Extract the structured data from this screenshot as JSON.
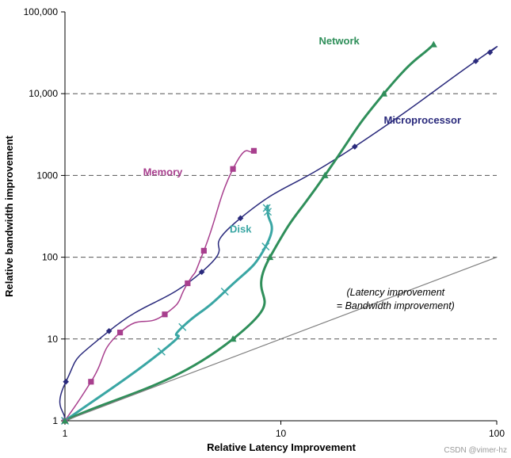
{
  "chart_data": {
    "type": "line",
    "x_scale": "log",
    "y_scale": "log",
    "xlim": [
      1,
      100
    ],
    "ylim": [
      1,
      100000
    ],
    "xlabel": "Relative Latency Improvement",
    "ylabel": "Relative bandwidth improvement",
    "x_ticks": [
      {
        "value": 1,
        "label": "1"
      },
      {
        "value": 10,
        "label": "10"
      },
      {
        "value": 100,
        "label": "100"
      }
    ],
    "y_ticks": [
      {
        "value": 1,
        "label": "1"
      },
      {
        "value": 10,
        "label": "10"
      },
      {
        "value": 100,
        "label": "100"
      },
      {
        "value": 1000,
        "label": "1000"
      },
      {
        "value": 10000,
        "label": "10,000"
      },
      {
        "value": 100000,
        "label": "100,000"
      }
    ],
    "grid": "horizontal dashed at 10, 100, 1000, 10000",
    "series": [
      {
        "name": "Microprocessor",
        "color": "#2a2a7c",
        "marker": "diamond",
        "stroke_width": 1.5,
        "points": [
          [
            1,
            1
          ],
          [
            1.01,
            3
          ],
          [
            1.6,
            12.5
          ],
          [
            4.3,
            66
          ],
          [
            6.5,
            300
          ],
          [
            22,
            2250
          ],
          [
            80,
            25000
          ],
          [
            93,
            32000
          ]
        ]
      },
      {
        "name": "Memory",
        "color": "#a83f8e",
        "marker": "square",
        "stroke_width": 1.5,
        "points": [
          [
            1,
            1
          ],
          [
            1.32,
            3
          ],
          [
            1.8,
            12
          ],
          [
            2.9,
            20
          ],
          [
            3.7,
            48
          ],
          [
            4.4,
            120
          ],
          [
            6.0,
            1200
          ],
          [
            7.5,
            2000
          ]
        ]
      },
      {
        "name": "Disk",
        "color": "#3aa6a4",
        "marker": "x",
        "stroke_width": 3,
        "points": [
          [
            1,
            1
          ],
          [
            2.8,
            7
          ],
          [
            3.5,
            14
          ],
          [
            5.5,
            38
          ],
          [
            8.5,
            135
          ],
          [
            8.7,
            360
          ],
          [
            8.6,
            400
          ]
        ]
      },
      {
        "name": "Network",
        "color": "#2f8f5a",
        "marker": "triangle",
        "stroke_width": 3,
        "points": [
          [
            1,
            1
          ],
          [
            6,
            10
          ],
          [
            8.9,
            100
          ],
          [
            16,
            1000
          ],
          [
            30,
            10000
          ],
          [
            51,
            40000
          ]
        ]
      },
      {
        "name": "",
        "color": "#7f7f7f",
        "marker": "none",
        "stroke_width": 1.2,
        "points": [
          [
            1,
            1
          ],
          [
            100,
            100
          ]
        ]
      }
    ],
    "labels": [
      {
        "text": "Network",
        "series": "Network",
        "color": "#2f8f5a",
        "at": [
          15,
          40000
        ]
      },
      {
        "text": "Microprocessor",
        "series": "Microprocessor",
        "color": "#2a2a7c",
        "at": [
          30,
          4300
        ]
      },
      {
        "text": "Memory",
        "series": "Memory",
        "color": "#a83f8e",
        "at": [
          2.3,
          1000
        ]
      },
      {
        "text": "Disk",
        "series": "Disk",
        "color": "#3aa6a4",
        "at": [
          5.8,
          200
        ]
      }
    ],
    "annotation": {
      "lines": [
        "(Latency improvement",
        "= Bandwidth improvement)"
      ],
      "at": [
        34,
        34
      ]
    }
  },
  "watermark": "CSDN @vimer-hz"
}
